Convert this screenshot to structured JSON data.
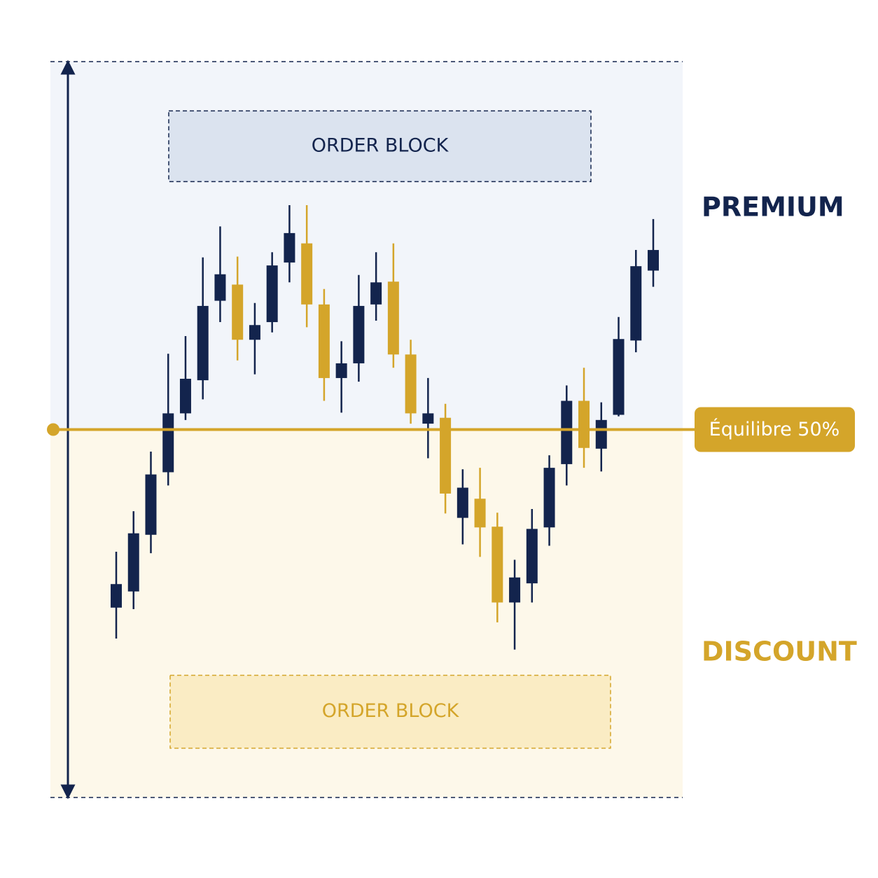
{
  "chart_data": {
    "type": "candlestick",
    "open": [
      25.8,
      28.0,
      35.7,
      44.2,
      52.2,
      56.7,
      67.5,
      69.7,
      62.2,
      64.6,
      72.7,
      75.3,
      67.0,
      57.0,
      59.0,
      67.0,
      70.1,
      60.2,
      50.8,
      51.6,
      38.0,
      40.6,
      36.8,
      26.5,
      29.1,
      36.7,
      45.3,
      53.9,
      47.4,
      52.0,
      62.1,
      71.6
    ],
    "high": [
      33.4,
      38.9,
      47.0,
      60.3,
      62.7,
      73.4,
      77.6,
      73.5,
      67.2,
      74.1,
      80.5,
      80.5,
      69.1,
      62.0,
      71.0,
      74.1,
      75.3,
      62.2,
      57.0,
      53.5,
      44.6,
      44.8,
      38.7,
      32.3,
      39.2,
      46.5,
      56.0,
      58.4,
      53.7,
      65.3,
      74.4,
      78.6
    ],
    "low": [
      21.6,
      25.6,
      33.2,
      42.4,
      51.3,
      54.1,
      64.6,
      59.4,
      57.5,
      63.2,
      70.0,
      63.9,
      53.9,
      52.3,
      56.5,
      64.8,
      58.4,
      50.8,
      46.1,
      38.6,
      34.4,
      32.7,
      23.8,
      20.1,
      26.5,
      34.2,
      42.4,
      44.8,
      44.3,
      51.8,
      60.5,
      69.4
    ],
    "close": [
      29.0,
      35.9,
      43.9,
      52.2,
      56.9,
      66.8,
      71.1,
      62.2,
      64.2,
      72.3,
      76.7,
      67.0,
      57.0,
      59.0,
      66.8,
      70.0,
      60.2,
      52.2,
      52.2,
      41.3,
      42.1,
      36.7,
      26.5,
      29.9,
      36.5,
      44.8,
      53.9,
      47.5,
      51.3,
      62.3,
      72.2,
      74.4
    ],
    "up_color": "#13244d",
    "down_color": "#d4a52a",
    "ylim": [
      0,
      100
    ],
    "premium_label": "PREMIUM",
    "discount_label": "DISCOUNT",
    "equilibrium": {
      "value": 50,
      "label": "Équilibre 50%"
    },
    "order_blocks": [
      {
        "label": "ORDER BLOCK",
        "low": 83.7,
        "high": 93.3
      },
      {
        "label": "ORDER BLOCK",
        "low": 6.7,
        "high": 16.6
      }
    ]
  }
}
